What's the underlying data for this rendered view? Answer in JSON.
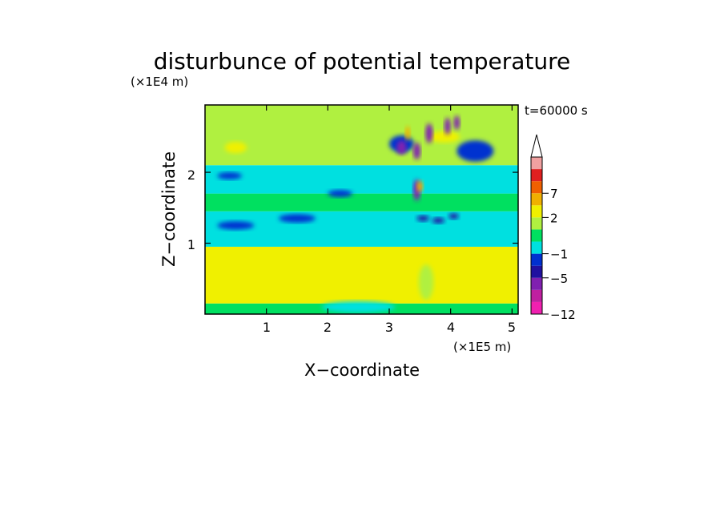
{
  "chart_data": {
    "type": "heatmap",
    "title": "disturbunce of potential temperature",
    "time_label": "t=60000 s",
    "xlabel": "X−coordinate",
    "ylabel": "Z−coordinate",
    "x_unit": "(×1E5 m)",
    "y_unit": "(×1E4 m)",
    "xlim": [
      0,
      5.1
    ],
    "ylim": [
      0,
      2.95
    ],
    "x_ticks": [
      1,
      2,
      3,
      4,
      5
    ],
    "y_ticks": [
      1,
      2
    ],
    "x_tick_labels": [
      "1",
      "2",
      "3",
      "4",
      "5"
    ],
    "y_tick_labels": [
      "1",
      "2"
    ],
    "colorbar": {
      "levels": [
        -12,
        -9,
        -7,
        -5,
        -3,
        -1,
        0,
        1,
        2,
        4,
        7,
        10,
        12
      ],
      "tick_values": [
        -12,
        -5,
        -1,
        2,
        7
      ],
      "tick_labels": [
        "−12",
        "−5",
        "−1",
        "2",
        "7"
      ],
      "colors": [
        "#f020b0",
        "#c020a0",
        "#8020b0",
        "#2010a0",
        "#0030d0",
        "#00e0e0",
        "#00e060",
        "#b0f040",
        "#f0f000",
        "#f0b000",
        "#f06000",
        "#e02020",
        "#f0a0a0"
      ],
      "extend": "max"
    },
    "bands": [
      {
        "z_min": 0.0,
        "z_max": 0.15,
        "value": 0.5
      },
      {
        "z_min": 0.15,
        "z_max": 0.95,
        "value": 2.5
      },
      {
        "z_min": 0.95,
        "z_max": 1.45,
        "value": -0.3
      },
      {
        "z_min": 1.45,
        "z_max": 1.7,
        "value": 0.4
      },
      {
        "z_min": 1.7,
        "z_max": 2.1,
        "value": -0.2
      },
      {
        "z_min": 2.1,
        "z_max": 2.95,
        "value": 1.0
      }
    ],
    "features": [
      {
        "x": 0.5,
        "z": 0.5,
        "rx": 0.45,
        "rz": 0.1,
        "value": 3
      },
      {
        "x": 2.0,
        "z": 0.5,
        "rx": 0.5,
        "rz": 0.1,
        "value": 3
      },
      {
        "x": 4.9,
        "z": 0.5,
        "rx": 0.25,
        "rz": 0.2,
        "value": 3
      },
      {
        "x": 0.5,
        "z": 2.35,
        "rx": 0.18,
        "rz": 0.08,
        "value": 3
      },
      {
        "x": 3.9,
        "z": 2.5,
        "rx": 0.25,
        "rz": 0.08,
        "value": 3
      },
      {
        "x": 0.5,
        "z": 1.25,
        "rx": 0.3,
        "rz": 0.06,
        "value": -1.5
      },
      {
        "x": 1.5,
        "z": 1.35,
        "rx": 0.3,
        "rz": 0.06,
        "value": -1.5
      },
      {
        "x": 0.4,
        "z": 1.95,
        "rx": 0.2,
        "rz": 0.05,
        "value": -3
      },
      {
        "x": 2.2,
        "z": 1.7,
        "rx": 0.2,
        "rz": 0.05,
        "value": -2
      },
      {
        "x": 3.2,
        "z": 2.4,
        "rx": 0.2,
        "rz": 0.12,
        "value": -1.5
      },
      {
        "x": 4.4,
        "z": 2.3,
        "rx": 0.3,
        "rz": 0.15,
        "value": -1.5
      },
      {
        "x": 3.55,
        "z": 1.35,
        "rx": 0.1,
        "rz": 0.04,
        "value": -4
      },
      {
        "x": 3.8,
        "z": 1.32,
        "rx": 0.1,
        "rz": 0.04,
        "value": -4
      },
      {
        "x": 4.05,
        "z": 1.38,
        "rx": 0.08,
        "rz": 0.04,
        "value": -4
      },
      {
        "x": 3.2,
        "z": 2.35,
        "rx": 0.08,
        "rz": 0.1,
        "value": -6
      },
      {
        "x": 3.45,
        "z": 2.3,
        "rx": 0.06,
        "rz": 0.12,
        "value": -6
      },
      {
        "x": 3.65,
        "z": 2.55,
        "rx": 0.06,
        "rz": 0.14,
        "value": -6
      },
      {
        "x": 3.95,
        "z": 2.65,
        "rx": 0.05,
        "rz": 0.12,
        "value": -6
      },
      {
        "x": 4.1,
        "z": 2.7,
        "rx": 0.05,
        "rz": 0.1,
        "value": -6
      },
      {
        "x": 3.45,
        "z": 1.75,
        "rx": 0.06,
        "rz": 0.15,
        "value": -6
      },
      {
        "x": 3.5,
        "z": 1.8,
        "rx": 0.05,
        "rz": 0.08,
        "value": 6
      },
      {
        "x": 3.3,
        "z": 2.55,
        "rx": 0.04,
        "rz": 0.1,
        "value": 6
      },
      {
        "x": 3.6,
        "z": 0.45,
        "rx": 0.12,
        "rz": 0.25,
        "value": 1.5
      },
      {
        "x": 2.5,
        "z": 0.1,
        "rx": 0.6,
        "rz": 0.08,
        "value": -0.5
      }
    ]
  }
}
